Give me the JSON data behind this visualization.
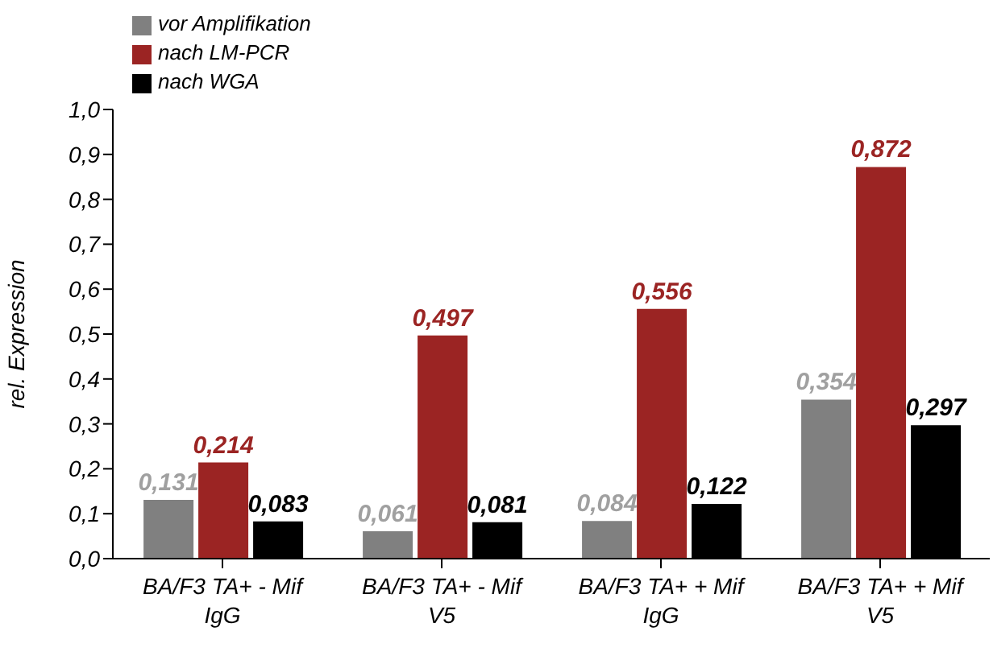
{
  "chart_data": {
    "type": "bar",
    "ylabel": "rel. Expression",
    "categories": [
      "BA/F3 TA+ - Mif IgG",
      "BA/F3 TA+ - Mif V5",
      "BA/F3 TA+ + Mif IgG",
      "BA/F3 TA+ + Mif V5"
    ],
    "series": [
      {
        "name": "vor Amplifikation",
        "color": "#808080",
        "values": [
          0.131,
          0.061,
          0.084,
          0.354
        ],
        "value_labels": [
          "0,131",
          "0,061",
          "0,084",
          "0,354"
        ]
      },
      {
        "name": "nach LM-PCR",
        "color": "#9b2423",
        "values": [
          0.214,
          0.497,
          0.556,
          0.872
        ],
        "value_labels": [
          "0,214",
          "0,497",
          "0,556",
          "0,872"
        ]
      },
      {
        "name": "nach WGA",
        "color": "#000000",
        "values": [
          0.083,
          0.081,
          0.122,
          0.297
        ],
        "value_labels": [
          "0,083",
          "0,081",
          "0,122",
          "0,297"
        ]
      }
    ],
    "ylim": [
      0,
      1
    ],
    "yticks": [
      {
        "value": 0,
        "label": "0,0"
      },
      {
        "value": 0.1,
        "label": "0,1"
      },
      {
        "value": 0.2,
        "label": "0,2"
      },
      {
        "value": 0.3,
        "label": "0,3"
      },
      {
        "value": 0.4,
        "label": "0,4"
      },
      {
        "value": 0.5,
        "label": "0,5"
      },
      {
        "value": 0.6,
        "label": "0,6"
      },
      {
        "value": 0.7,
        "label": "0,7"
      },
      {
        "value": 0.8,
        "label": "0,8"
      },
      {
        "value": 0.9,
        "label": "0,9"
      },
      {
        "value": 1,
        "label": "1,0"
      }
    ],
    "grid": false,
    "legend": "top left"
  }
}
